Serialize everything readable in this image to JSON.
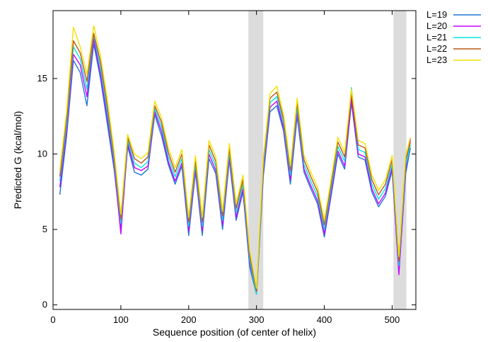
{
  "chart_data": {
    "type": "line",
    "title": "",
    "xlabel": "Sequence position (of center of helix)",
    "ylabel": "Predicted  G (kcal/mol)",
    "xlim": [
      0,
      535
    ],
    "ylim": [
      -0.3,
      19.5
    ],
    "xticks": [
      0,
      100,
      200,
      300,
      400,
      500
    ],
    "yticks": [
      0,
      5,
      10,
      15
    ],
    "grid": false,
    "legend": "outside-top-right",
    "shaded_regions": [
      {
        "x0": 288,
        "x1": 310,
        "color": "#dcdcdc"
      },
      {
        "x0": 502,
        "x1": 521,
        "color": "#dcdcdc"
      }
    ],
    "x": [
      10,
      20,
      30,
      40,
      50,
      60,
      70,
      80,
      90,
      100,
      110,
      120,
      130,
      140,
      150,
      160,
      170,
      180,
      190,
      200,
      210,
      220,
      230,
      240,
      250,
      260,
      270,
      280,
      290,
      300,
      310,
      320,
      330,
      340,
      350,
      360,
      370,
      380,
      390,
      400,
      410,
      420,
      430,
      440,
      450,
      460,
      470,
      480,
      490,
      500,
      510,
      520,
      527
    ],
    "series": [
      {
        "name": "L=19",
        "color": "#1f77d4",
        "values": [
          7.3,
          11.2,
          16.2,
          15.4,
          13.2,
          17.3,
          15.0,
          12.0,
          9.0,
          5.0,
          10.5,
          8.8,
          8.6,
          9.0,
          12.6,
          11.2,
          9.3,
          8.0,
          9.2,
          4.6,
          8.8,
          4.6,
          9.7,
          8.7,
          5.0,
          9.6,
          5.6,
          7.5,
          2.5,
          0.7,
          8.5,
          12.8,
          13.2,
          11.5,
          8.0,
          12.5,
          8.8,
          7.7,
          6.7,
          4.5,
          7.2,
          10.0,
          9.0,
          13.4,
          9.8,
          9.6,
          7.5,
          6.5,
          7.2,
          8.9,
          2.2,
          8.7,
          10.4
        ]
      },
      {
        "name": "L=20",
        "color": "#cc00ff",
        "values": [
          7.8,
          11.6,
          16.6,
          15.9,
          13.8,
          17.6,
          15.3,
          12.4,
          9.3,
          4.7,
          10.7,
          9.1,
          8.9,
          9.2,
          12.8,
          11.5,
          9.5,
          8.2,
          9.4,
          4.9,
          9.0,
          4.9,
          10.0,
          8.9,
          5.3,
          9.8,
          5.8,
          7.7,
          2.8,
          0.8,
          8.8,
          13.1,
          13.5,
          11.7,
          8.3,
          12.8,
          9.0,
          7.9,
          6.9,
          4.7,
          7.4,
          10.2,
          9.2,
          13.7,
          10.0,
          9.8,
          7.7,
          6.7,
          7.4,
          9.1,
          2.0,
          9.0,
          11.0
        ]
      },
      {
        "name": "L=21",
        "color": "#00e5e5",
        "values": [
          8.2,
          12.0,
          17.1,
          16.3,
          14.3,
          17.9,
          15.7,
          12.8,
          9.6,
          5.4,
          10.9,
          9.4,
          9.1,
          9.5,
          13.0,
          11.8,
          9.8,
          8.5,
          9.7,
          5.2,
          9.3,
          5.2,
          10.3,
          9.2,
          5.6,
          10.1,
          6.1,
          8.0,
          3.0,
          0.7,
          9.1,
          13.4,
          13.8,
          12.0,
          8.6,
          13.1,
          9.3,
          8.2,
          7.2,
          5.0,
          7.7,
          10.5,
          9.5,
          14.4,
          10.3,
          10.1,
          8.0,
          7.0,
          7.7,
          9.3,
          2.6,
          9.3,
          10.6
        ]
      },
      {
        "name": "L=22",
        "color": "#b8581a",
        "values": [
          8.5,
          12.4,
          17.5,
          16.7,
          14.8,
          18.0,
          16.1,
          13.2,
          9.9,
          5.7,
          11.1,
          9.7,
          9.4,
          9.8,
          13.2,
          12.1,
          10.1,
          8.8,
          10.0,
          5.5,
          9.6,
          5.5,
          10.6,
          9.5,
          5.9,
          10.4,
          6.4,
          8.3,
          3.3,
          0.9,
          9.4,
          13.7,
          14.1,
          12.3,
          8.9,
          13.4,
          9.6,
          8.5,
          7.5,
          5.3,
          8.0,
          10.8,
          9.8,
          14.0,
          10.6,
          10.4,
          8.3,
          7.3,
          8.0,
          9.6,
          2.9,
          9.6,
          10.8
        ]
      },
      {
        "name": "L=23",
        "color": "#f5e000",
        "values": [
          8.9,
          12.8,
          18.4,
          17.1,
          15.3,
          18.5,
          16.5,
          13.6,
          10.2,
          6.0,
          11.3,
          10.0,
          9.7,
          10.1,
          13.5,
          12.4,
          10.4,
          9.1,
          10.3,
          5.8,
          9.9,
          5.8,
          10.9,
          9.8,
          6.2,
          10.7,
          6.7,
          8.6,
          3.6,
          1.1,
          9.7,
          14.0,
          14.5,
          12.6,
          9.2,
          13.7,
          9.9,
          8.8,
          7.8,
          5.6,
          8.3,
          11.1,
          10.1,
          14.3,
          10.9,
          10.7,
          8.6,
          7.6,
          8.3,
          9.9,
          3.2,
          9.9,
          11.1
        ]
      }
    ]
  }
}
